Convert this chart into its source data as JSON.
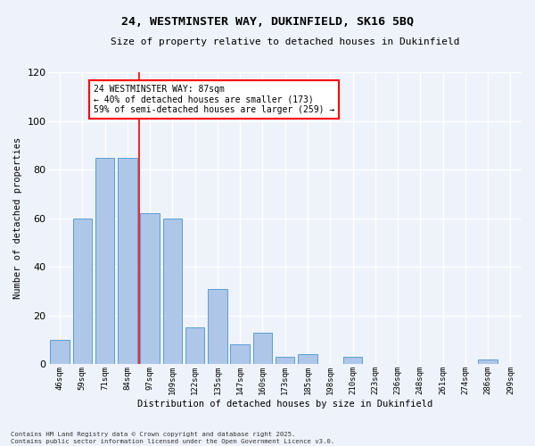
{
  "title1": "24, WESTMINSTER WAY, DUKINFIELD, SK16 5BQ",
  "title2": "Size of property relative to detached houses in Dukinfield",
  "xlabel": "Distribution of detached houses by size in Dukinfield",
  "ylabel": "Number of detached properties",
  "categories": [
    "46sqm",
    "59sqm",
    "71sqm",
    "84sqm",
    "97sqm",
    "109sqm",
    "122sqm",
    "135sqm",
    "147sqm",
    "160sqm",
    "173sqm",
    "185sqm",
    "198sqm",
    "210sqm",
    "223sqm",
    "236sqm",
    "248sqm",
    "261sqm",
    "274sqm",
    "286sqm",
    "299sqm"
  ],
  "values": [
    10,
    60,
    85,
    85,
    62,
    60,
    15,
    31,
    8,
    13,
    3,
    4,
    0,
    3,
    0,
    0,
    0,
    0,
    0,
    2,
    0
  ],
  "bar_color": "#aec6e8",
  "bar_edge_color": "#5a9fd4",
  "vline_x": 3.5,
  "vline_color": "red",
  "ylim": [
    0,
    120
  ],
  "yticks": [
    0,
    20,
    40,
    60,
    80,
    100,
    120
  ],
  "annotation_text": "24 WESTMINSTER WAY: 87sqm\n← 40% of detached houses are smaller (173)\n59% of semi-detached houses are larger (259) →",
  "annotation_box_color": "white",
  "annotation_box_edge": "red",
  "footer1": "Contains HM Land Registry data © Crown copyright and database right 2025.",
  "footer2": "Contains public sector information licensed under the Open Government Licence v3.0.",
  "bg_color": "#eef2fa",
  "grid_color": "white"
}
